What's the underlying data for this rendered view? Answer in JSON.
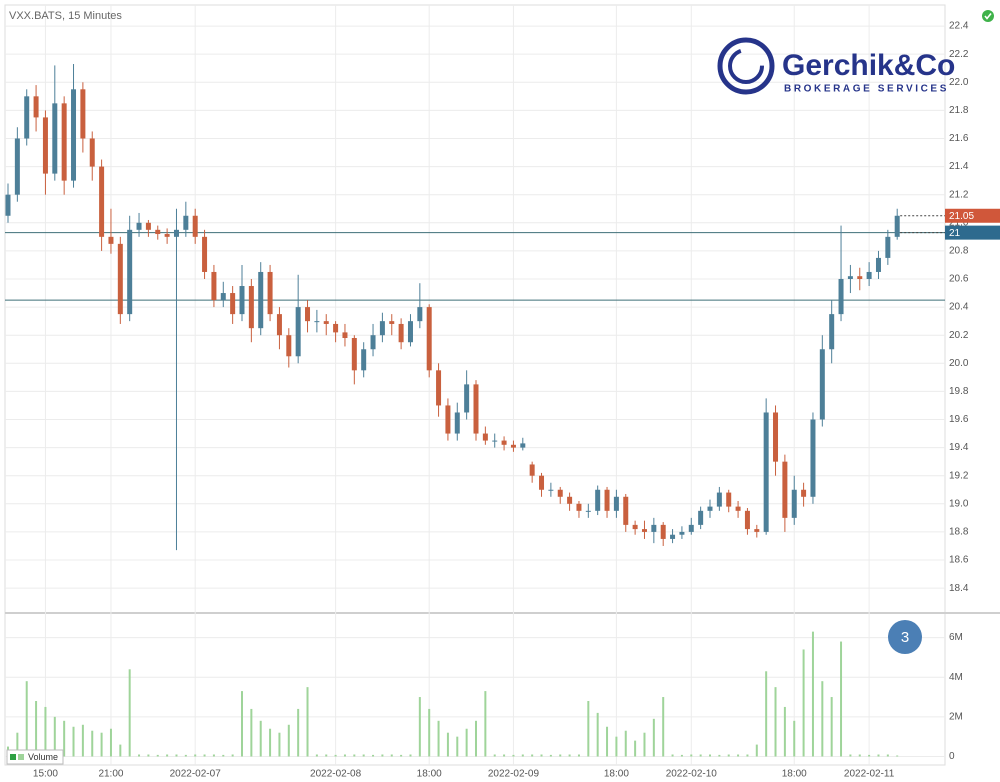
{
  "chart_data": {
    "type": "candlestick",
    "title": "VXX.BATS, 15 Minutes",
    "brand": "Gerchik&Co",
    "brand_tagline": "BROKERAGE SERVICES",
    "badge": "3",
    "categories": [
      null,
      null,
      null,
      null,
      "15:00",
      null,
      null,
      null,
      null,
      null,
      null,
      "21:00",
      null,
      null,
      null,
      null,
      null,
      null,
      null,
      null,
      "2022-02-07",
      null,
      null,
      null,
      null,
      null,
      null,
      null,
      null,
      null,
      null,
      null,
      null,
      null,
      null,
      "2022-02-08",
      null,
      null,
      null,
      null,
      null,
      null,
      null,
      null,
      null,
      "18:00",
      null,
      null,
      null,
      null,
      null,
      null,
      null,
      null,
      "2022-02-09",
      null,
      null,
      null,
      null,
      null,
      null,
      null,
      null,
      null,
      null,
      "18:00",
      null,
      null,
      null,
      null,
      null,
      null,
      null,
      "2022-02-10",
      null,
      null,
      null,
      null,
      null,
      null,
      null,
      null,
      null,
      null,
      "18:00",
      null,
      null,
      null,
      null,
      null,
      null,
      null,
      "2022-02-11",
      null,
      null,
      null
    ],
    "ohlc": {
      "up_color": "#4d7f98",
      "down_color": "#c9603e",
      "open": [
        21.05,
        21.2,
        21.6,
        21.9,
        21.75,
        21.35,
        21.85,
        21.3,
        21.95,
        21.6,
        21.4,
        20.9,
        20.85,
        20.35,
        20.95,
        21.0,
        20.95,
        20.92,
        20.9,
        20.95,
        21.05,
        20.9,
        20.65,
        20.45,
        20.5,
        20.35,
        20.55,
        20.25,
        20.65,
        20.35,
        20.2,
        20.05,
        20.4,
        20.3,
        20.3,
        20.28,
        20.22,
        20.18,
        19.95,
        20.1,
        20.2,
        20.3,
        20.28,
        20.15,
        20.3,
        20.4,
        19.95,
        19.7,
        19.5,
        19.65,
        19.85,
        19.5,
        19.45,
        19.45,
        19.42,
        19.4,
        19.28,
        19.2,
        19.1,
        19.1,
        19.05,
        19.0,
        18.95,
        18.95,
        19.1,
        18.95,
        19.05,
        18.85,
        18.82,
        18.8,
        18.85,
        18.75,
        18.78,
        18.8,
        18.85,
        18.95,
        18.98,
        19.08,
        18.98,
        18.95,
        18.82,
        18.8,
        19.65,
        19.3,
        18.9,
        19.1,
        19.05,
        19.6,
        20.1,
        20.35,
        20.6,
        20.62,
        20.6,
        20.65,
        20.75,
        20.9
      ],
      "high": [
        21.28,
        21.68,
        21.95,
        21.98,
        21.8,
        22.12,
        21.9,
        22.13,
        22.0,
        21.65,
        21.45,
        21.1,
        20.9,
        21.05,
        21.07,
        21.02,
        20.98,
        20.96,
        21.1,
        21.15,
        21.1,
        20.95,
        20.7,
        20.58,
        20.55,
        20.7,
        20.6,
        20.72,
        20.7,
        20.4,
        20.25,
        20.63,
        20.45,
        20.38,
        20.35,
        20.3,
        20.28,
        20.2,
        20.15,
        20.28,
        20.36,
        20.35,
        20.32,
        20.35,
        20.57,
        20.42,
        20.0,
        19.75,
        19.72,
        19.95,
        19.88,
        19.55,
        19.5,
        19.48,
        19.45,
        19.47,
        19.3,
        19.22,
        19.15,
        19.12,
        19.08,
        19.02,
        19.0,
        19.13,
        19.12,
        19.1,
        19.07,
        18.88,
        18.88,
        18.9,
        18.87,
        18.82,
        18.84,
        18.9,
        18.98,
        19.03,
        19.12,
        19.1,
        19.02,
        18.97,
        18.85,
        19.75,
        19.7,
        19.35,
        19.2,
        19.15,
        19.65,
        20.2,
        20.45,
        20.98,
        20.7,
        20.68,
        20.72,
        20.8,
        20.95,
        21.1
      ],
      "low": [
        21.0,
        21.15,
        21.55,
        21.65,
        21.2,
        21.3,
        21.2,
        21.25,
        21.5,
        21.3,
        20.8,
        20.78,
        20.28,
        20.3,
        20.9,
        20.9,
        20.88,
        20.85,
        18.67,
        20.9,
        20.85,
        20.6,
        20.4,
        20.4,
        20.28,
        20.3,
        20.15,
        20.2,
        20.3,
        20.1,
        19.97,
        20.0,
        20.22,
        20.22,
        20.2,
        20.15,
        20.12,
        19.85,
        19.9,
        20.05,
        20.15,
        20.2,
        20.1,
        20.12,
        20.25,
        19.9,
        19.62,
        19.45,
        19.45,
        19.6,
        19.45,
        19.42,
        19.4,
        19.38,
        19.37,
        19.38,
        19.15,
        19.05,
        19.05,
        19.0,
        18.95,
        18.9,
        18.9,
        18.92,
        18.9,
        18.9,
        18.8,
        18.78,
        18.75,
        18.72,
        18.7,
        18.72,
        18.75,
        18.78,
        18.82,
        18.9,
        18.95,
        18.94,
        18.9,
        18.78,
        18.76,
        18.78,
        19.2,
        18.8,
        18.85,
        18.98,
        19.0,
        19.55,
        20.0,
        20.3,
        20.5,
        20.52,
        20.55,
        20.6,
        20.7,
        20.88
      ],
      "close": [
        21.2,
        21.6,
        21.9,
        21.75,
        21.35,
        21.85,
        21.3,
        21.95,
        21.6,
        21.4,
        20.9,
        20.85,
        20.35,
        20.95,
        21.0,
        20.95,
        20.92,
        20.9,
        20.95,
        21.05,
        20.9,
        20.65,
        20.45,
        20.5,
        20.35,
        20.55,
        20.25,
        20.65,
        20.35,
        20.2,
        20.05,
        20.4,
        20.3,
        20.3,
        20.28,
        20.22,
        20.18,
        19.95,
        20.1,
        20.2,
        20.3,
        20.28,
        20.15,
        20.3,
        20.4,
        19.95,
        19.7,
        19.5,
        19.65,
        19.85,
        19.5,
        19.45,
        19.45,
        19.42,
        19.4,
        19.43,
        19.2,
        19.1,
        19.1,
        19.05,
        19.0,
        18.95,
        18.95,
        19.1,
        18.95,
        19.05,
        18.85,
        18.82,
        18.8,
        18.85,
        18.75,
        18.78,
        18.8,
        18.85,
        18.95,
        18.98,
        19.08,
        18.98,
        18.95,
        18.82,
        18.8,
        19.65,
        19.3,
        18.9,
        19.1,
        19.05,
        19.6,
        20.1,
        20.35,
        20.6,
        20.62,
        20.6,
        20.65,
        20.75,
        20.9,
        21.05
      ]
    },
    "ylim": [
      18.23,
      22.55
    ],
    "yticks": [
      18.4,
      18.6,
      18.8,
      {
        "value": 19,
        "label": "19.0"
      },
      19.2,
      19.4,
      19.6,
      19.8,
      {
        "value": 20,
        "label": "20.0"
      },
      20.2,
      20.4,
      20.6,
      20.8,
      {
        "value": 21,
        "label": "21.0"
      },
      21.2,
      21.4,
      21.6,
      21.8,
      {
        "value": 22,
        "label": "22.0"
      },
      22.2,
      22.4
    ],
    "levels": [
      20.93,
      20.45
    ],
    "level_color": "#3f6f78",
    "price_labels": [
      {
        "value": 21.05,
        "label": "21.05",
        "color": "#d0573a"
      },
      {
        "value": 20.93,
        "label": "21",
        "color": "#2e6a8e"
      }
    ],
    "grid": true,
    "volume": {
      "name": "Volume",
      "color": "#9fd49a",
      "values": [
        500000,
        1200000,
        3800000,
        2800000,
        2500000,
        2000000,
        1800000,
        1500000,
        1600000,
        1300000,
        1200000,
        1400000,
        600000,
        4400000,
        100000,
        100000,
        80000,
        100000,
        100000,
        80000,
        100000,
        100000,
        100000,
        80000,
        100000,
        3300000,
        2400000,
        1800000,
        1400000,
        1200000,
        1600000,
        2400000,
        3500000,
        100000,
        100000,
        80000,
        100000,
        100000,
        100000,
        80000,
        100000,
        100000,
        80000,
        100000,
        3000000,
        2400000,
        1800000,
        1200000,
        1000000,
        1400000,
        1800000,
        3300000,
        100000,
        100000,
        80000,
        100000,
        100000,
        100000,
        80000,
        100000,
        100000,
        100000,
        2800000,
        2200000,
        1500000,
        1000000,
        1300000,
        800000,
        1200000,
        1900000,
        3000000,
        100000,
        80000,
        100000,
        100000,
        100000,
        80000,
        100000,
        100000,
        100000,
        600000,
        4300000,
        3500000,
        2500000,
        1800000,
        5400000,
        6300000,
        3800000,
        3000000,
        5800000,
        100000,
        100000,
        80000,
        100000,
        100000,
        50000
      ],
      "y2lim": [
        -430000,
        7140000
      ],
      "y2ticks": [
        0,
        {
          "value": 2000000,
          "label": "2M"
        },
        {
          "value": 4000000,
          "label": "4M"
        },
        {
          "value": 6000000,
          "label": "6M"
        }
      ]
    }
  }
}
